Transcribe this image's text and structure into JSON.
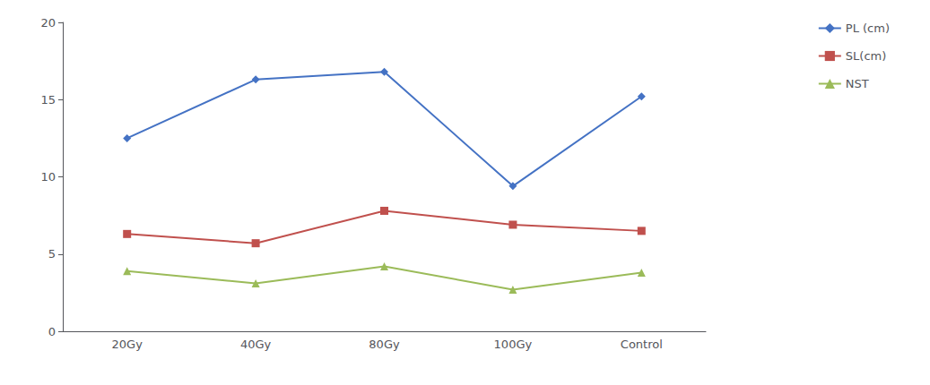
{
  "chart_data": {
    "type": "line",
    "categories": [
      "20Gy",
      "40Gy",
      "80Gy",
      "100Gy",
      "Control"
    ],
    "series": [
      {
        "name": "PL (cm)",
        "color": "#4472C4",
        "marker": "diamond",
        "values": [
          12.5,
          16.3,
          16.8,
          9.4,
          15.2
        ]
      },
      {
        "name": "SL(cm)",
        "color": "#C0504D",
        "marker": "square",
        "values": [
          6.3,
          5.7,
          7.8,
          6.9,
          6.5
        ]
      },
      {
        "name": "NST",
        "color": "#9BBB59",
        "marker": "triangle",
        "values": [
          3.9,
          3.1,
          4.2,
          2.7,
          3.8
        ]
      }
    ],
    "ylim": [
      0,
      20
    ],
    "yticks": [
      0,
      5,
      10,
      15,
      20
    ],
    "grid": false,
    "legend": "right"
  }
}
